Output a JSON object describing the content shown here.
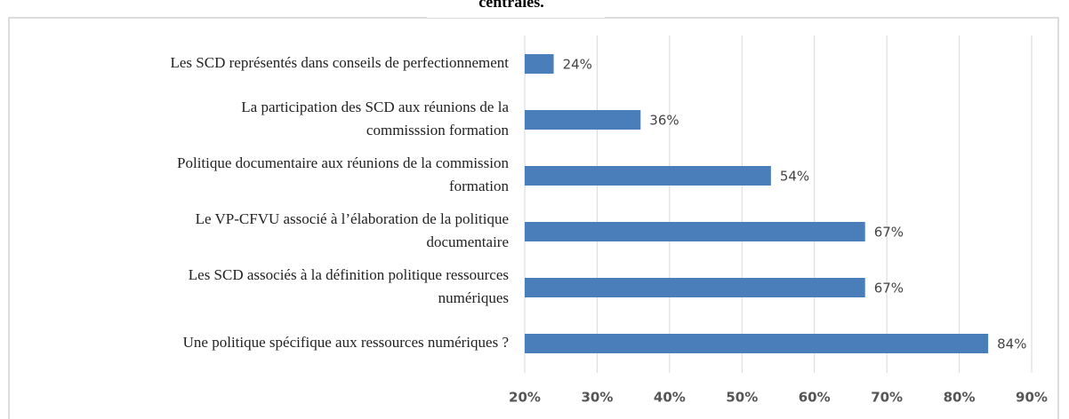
{
  "chart_data": {
    "type": "bar",
    "orientation": "horizontal",
    "title": "centrales.",
    "categories": [
      [
        "Les SCD représentés dans conseils de perfectionnement"
      ],
      [
        "La participation des SCD  aux réunions de la",
        "commisssion formation"
      ],
      [
        "Politique documentaire aux  réunions de la commission",
        "formation"
      ],
      [
        "Le VP-CFVU  associé à l’élaboration de la politique",
        "documentaire"
      ],
      [
        "Les SCD associés à la définition  politique ressources",
        "numériques"
      ],
      [
        "Une politique spécifique aux ressources numériques ?"
      ]
    ],
    "values": [
      24,
      36,
      54,
      67,
      67,
      84
    ],
    "value_labels": [
      "24%",
      "36%",
      "54%",
      "67%",
      "67%",
      "84%"
    ],
    "color": "#4a7ebb",
    "xlim": [
      20,
      90
    ],
    "xticks": [
      {
        "value": 20,
        "label": "20%"
      },
      {
        "value": 30,
        "label": "30%"
      },
      {
        "value": 40,
        "label": "40%"
      },
      {
        "value": 50,
        "label": "50%"
      },
      {
        "value": 60,
        "label": "60%"
      },
      {
        "value": 70,
        "label": "70%"
      },
      {
        "value": 80,
        "label": "80%"
      },
      {
        "value": 90,
        "label": "90%"
      }
    ],
    "grid": true
  }
}
